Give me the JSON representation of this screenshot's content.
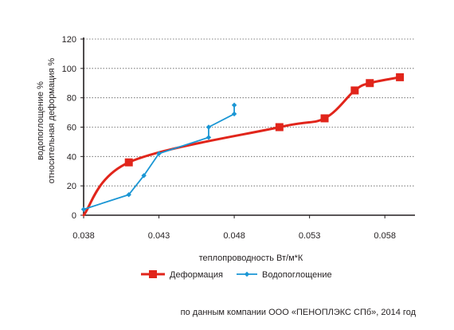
{
  "chart_data": {
    "type": "line",
    "xlabel": "теплопроводность Вт/м*К",
    "ylabel_lines": [
      "водопоглощение %",
      "относительная деформация %"
    ],
    "xlim": [
      0.038,
      0.06
    ],
    "ylim": [
      0,
      120
    ],
    "x_ticks": [
      0.038,
      0.043,
      0.048,
      0.053,
      0.058
    ],
    "x_tick_labels": [
      "0.038",
      "0.043",
      "0.048",
      "0.053",
      "0.058"
    ],
    "y_ticks": [
      0,
      20,
      40,
      60,
      80,
      100,
      120
    ],
    "y_tick_labels": [
      "0",
      "20",
      "40",
      "60",
      "80",
      "100",
      "120"
    ],
    "grid": "horizontal dotted",
    "legend_position": "bottom",
    "series": [
      {
        "name": "Деформация",
        "color": "#e1251b",
        "marker": "square",
        "smooth": true,
        "points": [
          {
            "x": 0.038,
            "y": 0
          },
          {
            "x": 0.041,
            "y": 36
          },
          {
            "x": 0.051,
            "y": 60
          },
          {
            "x": 0.054,
            "y": 66
          },
          {
            "x": 0.056,
            "y": 85
          },
          {
            "x": 0.057,
            "y": 90
          },
          {
            "x": 0.059,
            "y": 94
          }
        ]
      },
      {
        "name": "Водопоглощение",
        "color": "#1a96d4",
        "marker": "diamond",
        "smooth": false,
        "points": [
          {
            "x": 0.038,
            "y": 4
          },
          {
            "x": 0.041,
            "y": 14
          },
          {
            "x": 0.042,
            "y": 27
          },
          {
            "x": 0.043,
            "y": 42
          },
          {
            "x": 0.0463,
            "y": 53
          },
          {
            "x": 0.0463,
            "y": 60
          },
          {
            "x": 0.048,
            "y": 69
          },
          {
            "x": 0.048,
            "y": 75
          }
        ]
      }
    ]
  },
  "source_note": "по данным компании ООО «ПЕНОПЛЭКС СПб», 2014 год"
}
